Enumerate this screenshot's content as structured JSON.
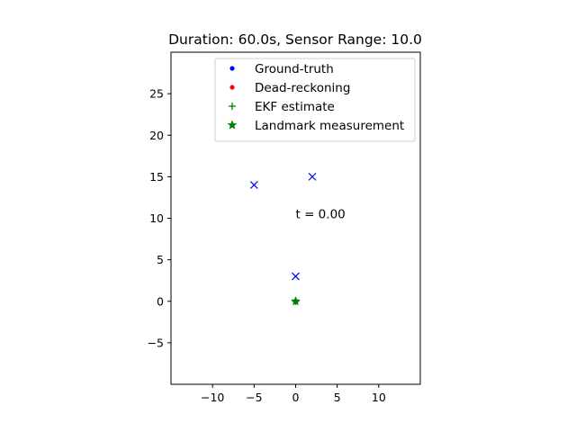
{
  "chart_data": {
    "type": "scatter",
    "title": "Duration: 60.0s, Sensor Range: 10.0",
    "xlabel": "",
    "ylabel": "",
    "xlim": [
      -15,
      15
    ],
    "ylim": [
      -10,
      30
    ],
    "xticks": [
      -10,
      -5,
      0,
      5,
      10
    ],
    "yticks": [
      -5,
      0,
      5,
      10,
      15,
      20,
      25
    ],
    "x_tick_labels": [
      "−10",
      "−5",
      "0",
      "5",
      "10"
    ],
    "y_tick_labels": [
      "−5",
      "0",
      "5",
      "10",
      "15",
      "20",
      "25"
    ],
    "grid": false,
    "legend_placement": "top-right",
    "series": [
      {
        "name": "Ground-truth",
        "marker": "circle",
        "color": "#0000ff",
        "points": [
          [
            0,
            0
          ]
        ]
      },
      {
        "name": "Dead-reckoning",
        "marker": "circle",
        "color": "#ff0000",
        "points": [
          [
            0,
            0
          ]
        ]
      },
      {
        "name": "EKF estimate",
        "marker": "plus",
        "color": "#008000",
        "points": [
          [
            0,
            0
          ]
        ]
      },
      {
        "name": "Landmark measurement",
        "marker": "star",
        "color": "#008000",
        "points": [
          [
            0,
            0
          ]
        ]
      }
    ],
    "landmarks": {
      "marker": "x",
      "color": "#0000ff",
      "points": [
        [
          -5,
          14
        ],
        [
          2,
          15
        ],
        [
          0,
          3
        ]
      ]
    },
    "annotation": {
      "text": "t = 0.00",
      "x": 0,
      "y": 10
    }
  }
}
